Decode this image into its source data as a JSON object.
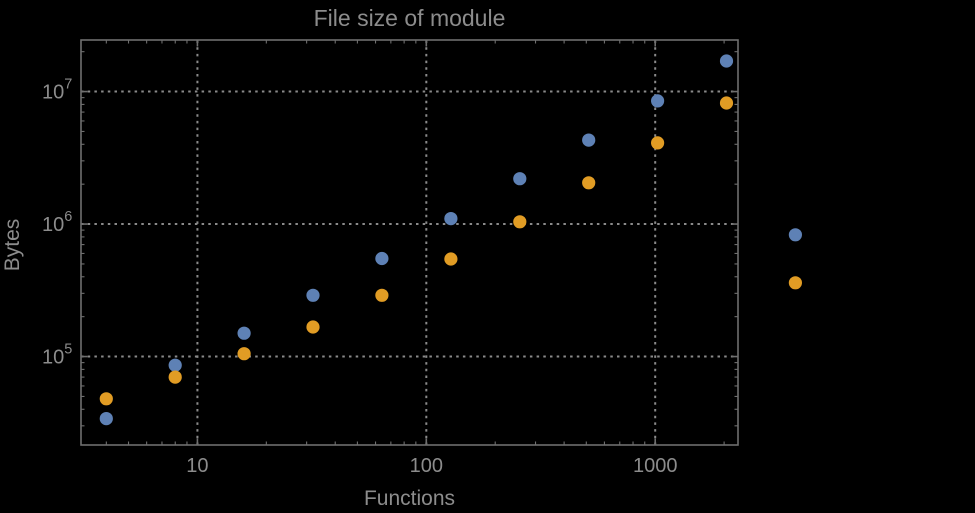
{
  "title": "File size of module",
  "axes": {
    "x_label": "Functions",
    "y_label": "Bytes"
  },
  "chart_data": {
    "type": "scatter",
    "title": "File size of module",
    "xlabel": "Functions",
    "ylabel": "Bytes",
    "x_scale": "log",
    "y_scale": "log",
    "x_range": [
      3.1,
      2300
    ],
    "y_range": [
      21500,
      24500000
    ],
    "grid": "dotted at major ticks",
    "legend": "none",
    "x": [
      4,
      8,
      16,
      32,
      64,
      128,
      256,
      512,
      1024,
      2048,
      4096
    ],
    "series": [
      {
        "name": "blue-series",
        "color": "#5e81b5",
        "values": [
          34000,
          86000,
          150000,
          290000,
          550000,
          1100000,
          2200000,
          4300000,
          8500000,
          17000000,
          830000
        ]
      },
      {
        "name": "orange-series",
        "color": "#e19c24",
        "values": [
          48000,
          70000,
          105000,
          167000,
          290000,
          545000,
          1040000,
          2050000,
          4100000,
          8200000,
          360000
        ]
      }
    ],
    "x_ticks": [
      {
        "value": 10,
        "label": "10"
      },
      {
        "value": 100,
        "label": "100"
      },
      {
        "value": 1000,
        "label": "1000"
      }
    ],
    "y_ticks": [
      {
        "value": 100000,
        "base": "10",
        "exp": "5"
      },
      {
        "value": 1000000,
        "base": "10",
        "exp": "6"
      },
      {
        "value": 10000000,
        "base": "10",
        "exp": "7"
      }
    ],
    "colors": {
      "background": "#000000",
      "frame": "#6f6f6f",
      "grid": "#8a8a8a",
      "text": "#8c8c8c"
    }
  }
}
